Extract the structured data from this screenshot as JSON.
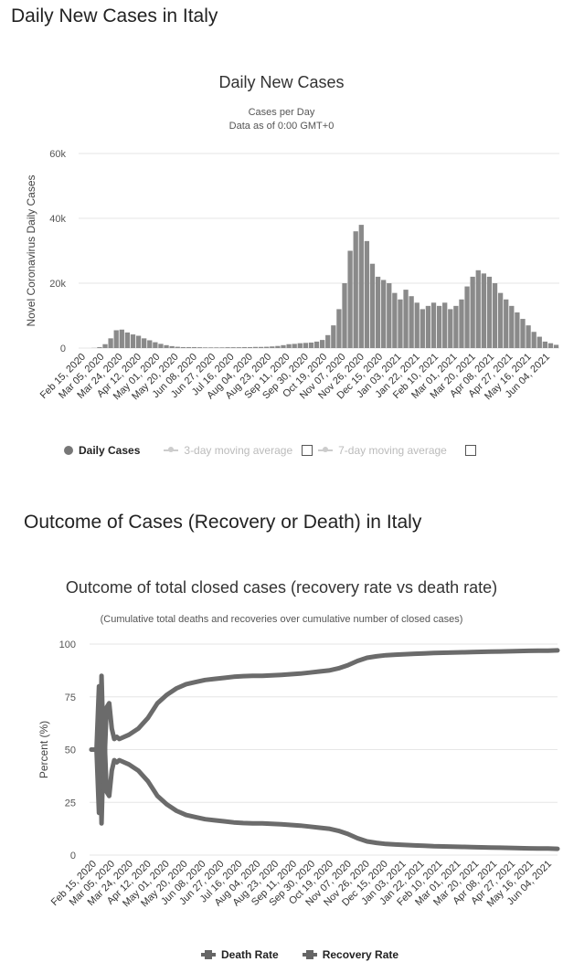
{
  "sections": {
    "cases_title": "Daily New Cases in Italy",
    "outcome_title": "Outcome of Cases (Recovery or Death) in Italy"
  },
  "colors": {
    "bar": "#8a8a8a",
    "line": "#6b6b6b",
    "grid": "#e6e6e6"
  },
  "chart_data": [
    {
      "type": "bar",
      "title": "Daily New Cases",
      "subtitle_line1": "Cases per Day",
      "subtitle_line2": "Data as of 0:00 GMT+0",
      "ylabel": "Novel Coronavirus Daily Cases",
      "ylim": [
        0,
        60000
      ],
      "yticks": [
        "0",
        "20k",
        "40k",
        "60k"
      ],
      "xticks": [
        "Feb 15, 2020",
        "Mar 05, 2020",
        "Mar 24, 2020",
        "Apr 12, 2020",
        "May 01, 2020",
        "May 20, 2020",
        "Jun 08, 2020",
        "Jun 27, 2020",
        "Jul 16, 2020",
        "Aug 04, 2020",
        "Aug 23, 2020",
        "Sep 11, 2020",
        "Sep 30, 2020",
        "Oct 19, 2020",
        "Nov 07, 2020",
        "Nov 26, 2020",
        "Dec 15, 2020",
        "Jan 03, 2021",
        "Jan 22, 2021",
        "Feb 10, 2021",
        "Mar 01, 2021",
        "Mar 20, 2021",
        "Apr 08, 2021",
        "Apr 27, 2021",
        "May 16, 2021",
        "Jun 04, 2021"
      ],
      "x_range": [
        "Feb 15, 2020",
        "Jun 18, 2021"
      ],
      "daily_cases_weekly_approx": [
        0,
        0,
        50,
        300,
        1200,
        3000,
        5500,
        5700,
        4800,
        4200,
        3800,
        3000,
        2400,
        1800,
        1300,
        900,
        600,
        400,
        300,
        300,
        300,
        250,
        200,
        200,
        200,
        200,
        250,
        250,
        250,
        300,
        300,
        350,
        350,
        400,
        500,
        650,
        900,
        1200,
        1300,
        1500,
        1600,
        1700,
        2000,
        2500,
        4000,
        7000,
        12000,
        20000,
        30000,
        36000,
        38000,
        33000,
        26000,
        22000,
        21000,
        20000,
        17000,
        15000,
        18000,
        16000,
        14000,
        12000,
        13000,
        14000,
        13000,
        14000,
        12000,
        13000,
        15000,
        19000,
        22000,
        24000,
        23000,
        22000,
        20000,
        17000,
        15000,
        13000,
        11000,
        9000,
        7000,
        5000,
        3500,
        2000,
        1500,
        1000
      ],
      "legend": {
        "daily": "Daily Cases",
        "ma3": "3-day moving average",
        "ma7": "7-day moving average"
      },
      "grid": true,
      "legend_position": "bottom"
    },
    {
      "type": "line",
      "title": "Outcome of total closed cases (recovery rate vs death rate)",
      "subtitle": "(Cumulative total deaths and recoveries over cumulative number of closed cases)",
      "ylabel": "Percent (%)",
      "ylim": [
        0,
        100
      ],
      "yticks": [
        "0",
        "25",
        "50",
        "75",
        "100"
      ],
      "xticks": [
        "Feb 15, 2020",
        "Mar 05, 2020",
        "Mar 24, 2020",
        "Apr 12, 2020",
        "May 01, 2020",
        "May 20, 2020",
        "Jun 08, 2020",
        "Jun 27, 2020",
        "Jul 16, 2020",
        "Aug 04, 2020",
        "Aug 23, 2020",
        "Sep 11, 2020",
        "Sep 30, 2020",
        "Oct 19, 2020",
        "Nov 07, 2020",
        "Nov 26, 2020",
        "Dec 15, 2020",
        "Jan 03, 2021",
        "Jan 22, 2021",
        "Feb 10, 2021",
        "Mar 01, 2021",
        "Mar 20, 2021",
        "Apr 08, 2021",
        "Apr 27, 2021",
        "May 16, 2021",
        "Jun 04, 2021"
      ],
      "series": [
        {
          "name": "Death Rate",
          "values": [
            50,
            50,
            50,
            80,
            15,
            60,
            30,
            28,
            40,
            45,
            44,
            45,
            43,
            40,
            35,
            28,
            24,
            21,
            19,
            18,
            17,
            16.5,
            16,
            15.5,
            15.2,
            15,
            15,
            14.8,
            14.6,
            14.3,
            14,
            13.5,
            13,
            12.5,
            11.5,
            10,
            8,
            6.5,
            5.8,
            5.3,
            5,
            4.8,
            4.6,
            4.4,
            4.2,
            4.1,
            4,
            3.9,
            3.8,
            3.7,
            3.6,
            3.5,
            3.4,
            3.3,
            3.2,
            3.1,
            3.1,
            3.0
          ]
        },
        {
          "name": "Recovery Rate",
          "values": [
            50,
            50,
            50,
            20,
            85,
            40,
            70,
            72,
            60,
            55,
            56,
            55,
            57,
            60,
            65,
            72,
            76,
            79,
            81,
            82,
            83,
            83.5,
            84,
            84.5,
            84.8,
            85,
            85,
            85.2,
            85.4,
            85.7,
            86,
            86.5,
            87,
            87.5,
            88.5,
            90,
            92,
            93.5,
            94.2,
            94.7,
            95,
            95.2,
            95.4,
            95.6,
            95.8,
            95.9,
            96,
            96.1,
            96.2,
            96.3,
            96.4,
            96.5,
            96.6,
            96.7,
            96.8,
            96.9,
            96.9,
            97.0
          ]
        }
      ],
      "legend_position": "bottom",
      "grid": true
    }
  ]
}
